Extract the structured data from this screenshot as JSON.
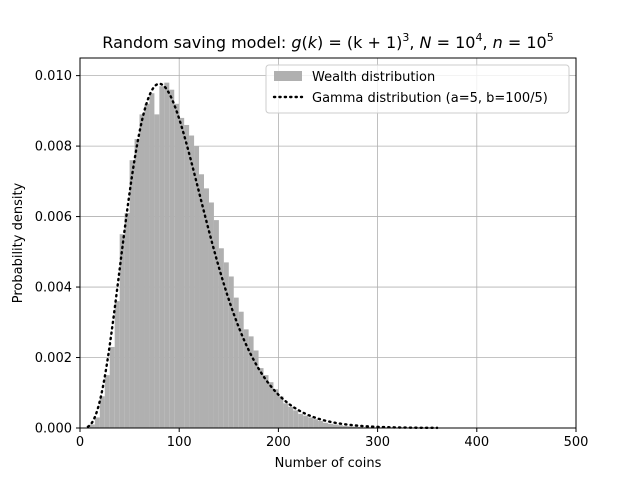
{
  "chart_data": {
    "type": "bar",
    "title": {
      "prefix": "Random saving model: ",
      "math1_func": "g",
      "math1_arg": "k",
      "math1_rhs": "(k + 1)",
      "math1_exp": "3",
      "sep1": ", ",
      "math2_lhs": "N",
      "math2_base": "10",
      "math2_exp": "4",
      "sep2": ", ",
      "math3_lhs": "n",
      "math3_base": "10",
      "math3_exp": "5"
    },
    "xlabel": "Number of coins",
    "ylabel": "Probability density",
    "xlim": [
      0,
      500
    ],
    "ylim": [
      0,
      0.0105
    ],
    "x_ticks": [
      0,
      100,
      200,
      300,
      400,
      500
    ],
    "x_tick_labels": [
      "0",
      "100",
      "200",
      "300",
      "400",
      "500"
    ],
    "y_ticks": [
      0,
      0.002,
      0.004,
      0.006,
      0.008,
      0.01
    ],
    "y_tick_labels": [
      "0.000",
      "0.002",
      "0.004",
      "0.006",
      "0.008",
      "0.010"
    ],
    "grid": true,
    "legend_position": "upper-right",
    "series": [
      {
        "name": "Wealth distribution",
        "kind": "histogram",
        "color": "#b0b0b0",
        "bin_width": 5,
        "bin_starts": [
          10,
          15,
          20,
          25,
          30,
          35,
          40,
          45,
          50,
          55,
          60,
          65,
          70,
          75,
          80,
          85,
          90,
          95,
          100,
          105,
          110,
          115,
          120,
          125,
          130,
          135,
          140,
          145,
          150,
          155,
          160,
          165,
          170,
          175,
          180,
          185,
          190,
          195,
          200,
          205,
          210,
          215,
          220,
          225,
          230,
          235,
          240,
          245,
          250,
          255,
          260,
          265,
          270,
          275,
          280,
          285,
          290,
          295,
          300,
          305,
          310,
          315
        ],
        "values": [
          0.0001,
          0.0003,
          0.0009,
          0.0015,
          0.0023,
          0.0036,
          0.0055,
          0.0061,
          0.0076,
          0.0082,
          0.0089,
          0.0092,
          0.0095,
          0.0089,
          0.0097,
          0.0098,
          0.0096,
          0.0092,
          0.0088,
          0.0086,
          0.0083,
          0.008,
          0.0072,
          0.0068,
          0.0064,
          0.0059,
          0.0051,
          0.0047,
          0.0043,
          0.0037,
          0.0033,
          0.0028,
          0.0026,
          0.0022,
          0.0017,
          0.0015,
          0.0013,
          0.0011,
          0.0009,
          0.0007,
          0.0006,
          0.0005,
          0.0004,
          0.00035,
          0.0003,
          0.00025,
          0.0002,
          0.00015,
          0.00012,
          0.0001,
          8e-05,
          6e-05,
          5e-05,
          4e-05,
          3e-05,
          2e-05,
          2e-05,
          1e-05,
          1e-05,
          5e-06,
          5e-06,
          3e-06
        ]
      },
      {
        "name": "Gamma distribution (a=5, b=100/5)",
        "kind": "line",
        "color": "#000000",
        "line_style": "dotted",
        "shape": 5,
        "scale": 20,
        "x_range": [
          8,
          360
        ]
      }
    ]
  }
}
